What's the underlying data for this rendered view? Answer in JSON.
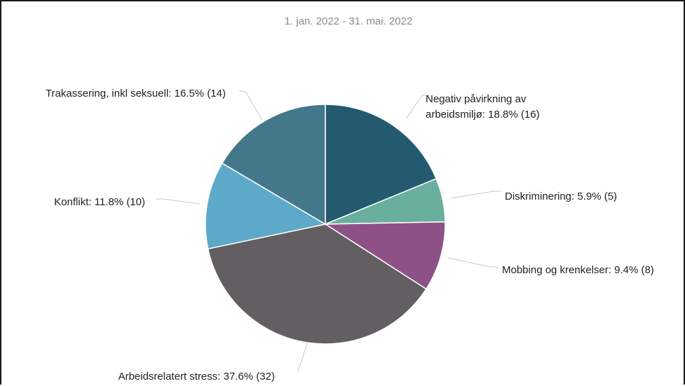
{
  "chart_data": {
    "type": "pie",
    "subtitle": "1. jan. 2022 - 31. mai. 2022",
    "slices": [
      {
        "name": "Negativ påvirkning av arbeidsmiljø",
        "percent": 18.8,
        "count": 16,
        "color": "#245a6f",
        "label_lines": [
          "Negativ påvirkning av",
          "arbeidsmiljø: 18.8% (16)"
        ]
      },
      {
        "name": "Diskriminering",
        "percent": 5.9,
        "count": 5,
        "color": "#6aaf9e",
        "label_lines": [
          "Diskriminering: 5.9% (5)"
        ]
      },
      {
        "name": "Mobbing og krenkelser",
        "percent": 9.4,
        "count": 8,
        "color": "#8e5185",
        "label_lines": [
          "Mobbing og krenkelser: 9.4% (8)"
        ]
      },
      {
        "name": "Arbeidsrelatert stress",
        "percent": 37.6,
        "count": 32,
        "color": "#625e62",
        "label_lines": [
          "Arbeidsrelatert stress: 37.6% (32)"
        ]
      },
      {
        "name": "Konflikt",
        "percent": 11.8,
        "count": 10,
        "color": "#5da9c9",
        "label_lines": [
          "Konflikt: 11.8% (10)"
        ]
      },
      {
        "name": "Trakassering, inkl seksuell",
        "percent": 16.5,
        "count": 14,
        "color": "#43778a",
        "label_lines": [
          "Trakassering, inkl seksuell: 16.5% (14)"
        ]
      }
    ]
  }
}
